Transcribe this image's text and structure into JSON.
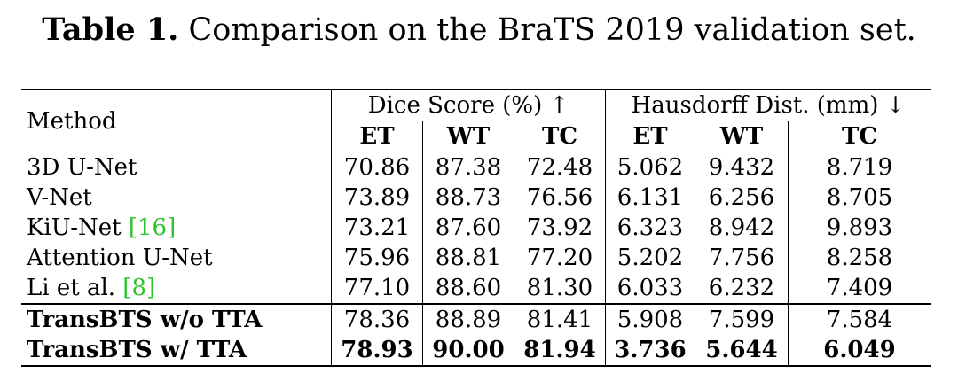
{
  "caption": {
    "label": "Table 1.",
    "text": "Comparison on the BraTS 2019 validation set."
  },
  "table": {
    "method_header": "Method",
    "group_headers": [
      "Dice Score (%) ↑",
      "Hausdorff Dist. (mm) ↓"
    ],
    "sub_headers": [
      "ET",
      "WT",
      "TC",
      "ET",
      "WT",
      "TC"
    ],
    "rows": [
      {
        "method": "3D U-Net",
        "cite": "",
        "cells": [
          "70.86",
          "87.38",
          "72.48",
          "5.062",
          "9.432",
          "8.719"
        ]
      },
      {
        "method": "V-Net",
        "cite": "",
        "cells": [
          "73.89",
          "88.73",
          "76.56",
          "6.131",
          "6.256",
          "8.705"
        ]
      },
      {
        "method": "KiU-Net ",
        "cite": "[16]",
        "cells": [
          "73.21",
          "87.60",
          "73.92",
          "6.323",
          "8.942",
          "9.893"
        ]
      },
      {
        "method": "Attention U-Net",
        "cite": "",
        "cells": [
          "75.96",
          "88.81",
          "77.20",
          "5.202",
          "7.756",
          "8.258"
        ]
      },
      {
        "method": "Li et al. ",
        "cite": "[8]",
        "cells": [
          "77.10",
          "88.60",
          "81.30",
          "6.033",
          "6.232",
          "7.409"
        ]
      },
      {
        "method": "TransBTS w/o TTA",
        "cite": "",
        "cells": [
          "78.36",
          "88.89",
          "81.41",
          "5.908",
          "7.599",
          "7.584"
        ]
      },
      {
        "method": "TransBTS w/ TTA",
        "cite": "",
        "cells": [
          "78.93",
          "90.00",
          "81.94",
          "3.736",
          "5.644",
          "6.049"
        ]
      }
    ]
  },
  "colors": {
    "citation": "#2ec22e",
    "text": "#000000",
    "background": "#ffffff"
  }
}
